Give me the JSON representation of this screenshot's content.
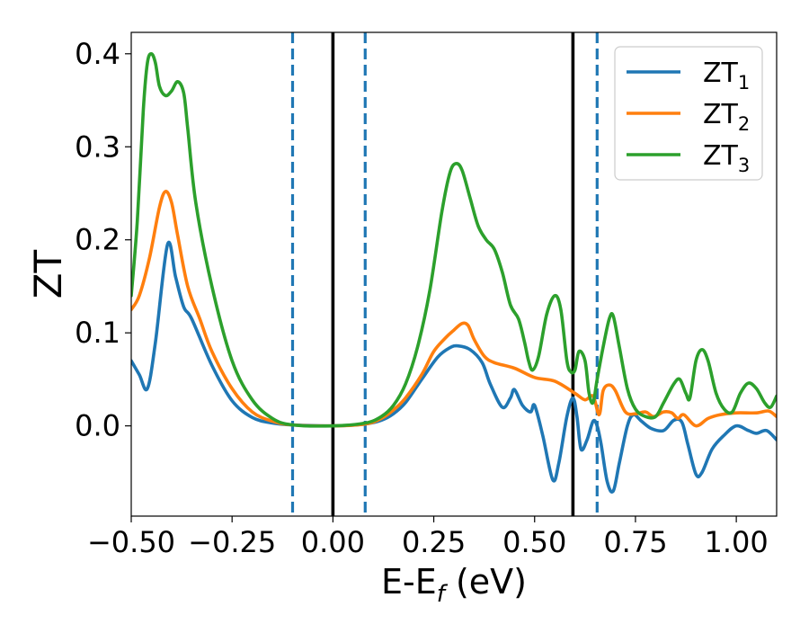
{
  "chart_data": {
    "type": "line",
    "title": "",
    "xlabel": {
      "base": "E-E",
      "sub": "f",
      "tail": " (eV)"
    },
    "ylabel": "ZT",
    "xlim": [
      -0.5,
      1.1
    ],
    "ylim": [
      -0.097,
      0.423
    ],
    "grid": false,
    "legend_position": "top-right",
    "xticks": [
      {
        "value": -0.5,
        "label": "−0.50"
      },
      {
        "value": -0.25,
        "label": "−0.25"
      },
      {
        "value": 0.0,
        "label": "0.00"
      },
      {
        "value": 0.25,
        "label": "0.25"
      },
      {
        "value": 0.5,
        "label": "0.50"
      },
      {
        "value": 0.75,
        "label": "0.75"
      },
      {
        "value": 1.0,
        "label": "1.00"
      }
    ],
    "yticks": [
      {
        "value": 0.0,
        "label": "0.0"
      },
      {
        "value": 0.1,
        "label": "0.1"
      },
      {
        "value": 0.2,
        "label": "0.2"
      },
      {
        "value": 0.3,
        "label": "0.3"
      },
      {
        "value": 0.4,
        "label": "0.4"
      }
    ],
    "vlines": [
      {
        "x": -0.1,
        "style": "dashed",
        "color": "#1f77b4"
      },
      {
        "x": 0.0,
        "style": "solid",
        "color": "#000000"
      },
      {
        "x": 0.08,
        "style": "dashed",
        "color": "#1f77b4"
      },
      {
        "x": 0.595,
        "style": "solid",
        "color": "#000000"
      },
      {
        "x": 0.655,
        "style": "dashed",
        "color": "#1f77b4"
      }
    ],
    "series": [
      {
        "name": "ZT",
        "sub": "1",
        "color": "#1f77b4",
        "points": [
          [
            -0.5,
            0.07
          ],
          [
            -0.48,
            0.055
          ],
          [
            -0.46,
            0.04
          ],
          [
            -0.44,
            0.09
          ],
          [
            -0.41,
            0.195
          ],
          [
            -0.39,
            0.16
          ],
          [
            -0.37,
            0.128
          ],
          [
            -0.35,
            0.115
          ],
          [
            -0.3,
            0.065
          ],
          [
            -0.25,
            0.027
          ],
          [
            -0.2,
            0.009
          ],
          [
            -0.15,
            0.003
          ],
          [
            -0.1,
            0.001
          ],
          [
            0.0,
            0.0
          ],
          [
            0.08,
            0.002
          ],
          [
            0.12,
            0.006
          ],
          [
            0.15,
            0.013
          ],
          [
            0.18,
            0.025
          ],
          [
            0.22,
            0.05
          ],
          [
            0.26,
            0.074
          ],
          [
            0.29,
            0.084
          ],
          [
            0.31,
            0.086
          ],
          [
            0.34,
            0.082
          ],
          [
            0.37,
            0.068
          ],
          [
            0.39,
            0.045
          ],
          [
            0.42,
            0.02
          ],
          [
            0.44,
            0.03
          ],
          [
            0.45,
            0.039
          ],
          [
            0.47,
            0.022
          ],
          [
            0.49,
            0.015
          ],
          [
            0.5,
            0.022
          ],
          [
            0.52,
            -0.01
          ],
          [
            0.545,
            -0.058
          ],
          [
            0.56,
            -0.04
          ],
          [
            0.58,
            0.01
          ],
          [
            0.595,
            0.03
          ],
          [
            0.605,
            0.01
          ],
          [
            0.615,
            -0.025
          ],
          [
            0.63,
            -0.015
          ],
          [
            0.645,
            0.005
          ],
          [
            0.655,
            0.0
          ],
          [
            0.665,
            -0.02
          ],
          [
            0.68,
            -0.06
          ],
          [
            0.695,
            -0.07
          ],
          [
            0.71,
            -0.04
          ],
          [
            0.73,
            0.0
          ],
          [
            0.745,
            0.012
          ],
          [
            0.765,
            0.005
          ],
          [
            0.79,
            -0.003
          ],
          [
            0.82,
            -0.005
          ],
          [
            0.845,
            0.006
          ],
          [
            0.865,
            0.004
          ],
          [
            0.88,
            -0.02
          ],
          [
            0.9,
            -0.052
          ],
          [
            0.915,
            -0.05
          ],
          [
            0.94,
            -0.025
          ],
          [
            0.97,
            -0.01
          ],
          [
            1.0,
            0.0
          ],
          [
            1.03,
            -0.005
          ],
          [
            1.05,
            -0.008
          ],
          [
            1.075,
            -0.005
          ],
          [
            1.1,
            -0.015
          ]
        ]
      },
      {
        "name": "ZT",
        "sub": "2",
        "color": "#ff7f0e",
        "points": [
          [
            -0.5,
            0.125
          ],
          [
            -0.48,
            0.14
          ],
          [
            -0.455,
            0.18
          ],
          [
            -0.43,
            0.235
          ],
          [
            -0.415,
            0.252
          ],
          [
            -0.4,
            0.24
          ],
          [
            -0.385,
            0.205
          ],
          [
            -0.36,
            0.15
          ],
          [
            -0.33,
            0.115
          ],
          [
            -0.3,
            0.08
          ],
          [
            -0.25,
            0.04
          ],
          [
            -0.2,
            0.015
          ],
          [
            -0.15,
            0.005
          ],
          [
            -0.1,
            0.001
          ],
          [
            0.0,
            0.0
          ],
          [
            0.08,
            0.002
          ],
          [
            0.12,
            0.008
          ],
          [
            0.15,
            0.017
          ],
          [
            0.18,
            0.03
          ],
          [
            0.22,
            0.055
          ],
          [
            0.25,
            0.08
          ],
          [
            0.28,
            0.095
          ],
          [
            0.3,
            0.103
          ],
          [
            0.32,
            0.11
          ],
          [
            0.335,
            0.108
          ],
          [
            0.35,
            0.093
          ],
          [
            0.375,
            0.075
          ],
          [
            0.4,
            0.068
          ],
          [
            0.45,
            0.062
          ],
          [
            0.5,
            0.052
          ],
          [
            0.55,
            0.048
          ],
          [
            0.6,
            0.035
          ],
          [
            0.625,
            0.028
          ],
          [
            0.645,
            0.032
          ],
          [
            0.66,
            0.012
          ],
          [
            0.67,
            0.038
          ],
          [
            0.685,
            0.044
          ],
          [
            0.7,
            0.038
          ],
          [
            0.725,
            0.015
          ],
          [
            0.75,
            0.013
          ],
          [
            0.775,
            0.015
          ],
          [
            0.795,
            0.01
          ],
          [
            0.82,
            0.015
          ],
          [
            0.84,
            0.014
          ],
          [
            0.855,
            0.008
          ],
          [
            0.87,
            0.012
          ],
          [
            0.9,
            0.0
          ],
          [
            0.93,
            0.008
          ],
          [
            0.96,
            0.012
          ],
          [
            1.0,
            0.014
          ],
          [
            1.05,
            0.014
          ],
          [
            1.08,
            0.016
          ],
          [
            1.1,
            0.01
          ]
        ]
      },
      {
        "name": "ZT",
        "sub": "3",
        "color": "#2ca02c",
        "points": [
          [
            -0.5,
            0.14
          ],
          [
            -0.485,
            0.22
          ],
          [
            -0.47,
            0.34
          ],
          [
            -0.46,
            0.39
          ],
          [
            -0.45,
            0.4
          ],
          [
            -0.44,
            0.39
          ],
          [
            -0.43,
            0.365
          ],
          [
            -0.415,
            0.355
          ],
          [
            -0.4,
            0.36
          ],
          [
            -0.385,
            0.37
          ],
          [
            -0.37,
            0.358
          ],
          [
            -0.36,
            0.32
          ],
          [
            -0.34,
            0.24
          ],
          [
            -0.3,
            0.15
          ],
          [
            -0.25,
            0.07
          ],
          [
            -0.2,
            0.028
          ],
          [
            -0.15,
            0.008
          ],
          [
            -0.1,
            0.001
          ],
          [
            0.0,
            0.0
          ],
          [
            0.08,
            0.003
          ],
          [
            0.12,
            0.01
          ],
          [
            0.15,
            0.022
          ],
          [
            0.18,
            0.045
          ],
          [
            0.21,
            0.085
          ],
          [
            0.24,
            0.145
          ],
          [
            0.27,
            0.23
          ],
          [
            0.29,
            0.272
          ],
          [
            0.305,
            0.282
          ],
          [
            0.32,
            0.275
          ],
          [
            0.34,
            0.245
          ],
          [
            0.36,
            0.215
          ],
          [
            0.38,
            0.2
          ],
          [
            0.4,
            0.19
          ],
          [
            0.42,
            0.165
          ],
          [
            0.44,
            0.13
          ],
          [
            0.46,
            0.115
          ],
          [
            0.475,
            0.09
          ],
          [
            0.485,
            0.07
          ],
          [
            0.495,
            0.06
          ],
          [
            0.51,
            0.075
          ],
          [
            0.53,
            0.12
          ],
          [
            0.55,
            0.14
          ],
          [
            0.565,
            0.125
          ],
          [
            0.58,
            0.07
          ],
          [
            0.59,
            0.058
          ],
          [
            0.6,
            0.06
          ],
          [
            0.61,
            0.08
          ],
          [
            0.625,
            0.07
          ],
          [
            0.635,
            0.035
          ],
          [
            0.645,
            0.025
          ],
          [
            0.655,
            0.05
          ],
          [
            0.67,
            0.085
          ],
          [
            0.685,
            0.115
          ],
          [
            0.695,
            0.118
          ],
          [
            0.71,
            0.085
          ],
          [
            0.73,
            0.04
          ],
          [
            0.75,
            0.018
          ],
          [
            0.775,
            0.01
          ],
          [
            0.8,
            0.01
          ],
          [
            0.82,
            0.025
          ],
          [
            0.845,
            0.045
          ],
          [
            0.86,
            0.05
          ],
          [
            0.875,
            0.035
          ],
          [
            0.885,
            0.03
          ],
          [
            0.9,
            0.07
          ],
          [
            0.915,
            0.082
          ],
          [
            0.93,
            0.07
          ],
          [
            0.95,
            0.035
          ],
          [
            0.97,
            0.018
          ],
          [
            0.99,
            0.015
          ],
          [
            1.01,
            0.035
          ],
          [
            1.03,
            0.046
          ],
          [
            1.05,
            0.04
          ],
          [
            1.07,
            0.025
          ],
          [
            1.085,
            0.02
          ],
          [
            1.1,
            0.032
          ]
        ]
      }
    ]
  }
}
